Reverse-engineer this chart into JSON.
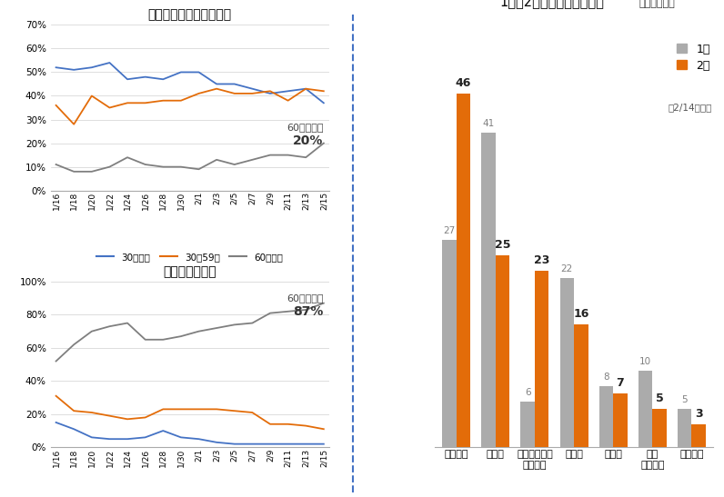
{
  "dates": [
    "1/16",
    "1/18",
    "1/20",
    "1/22",
    "1/24",
    "1/26",
    "1/28",
    "1/30",
    "2/1",
    "2/3",
    "2/5",
    "2/7",
    "2/9",
    "2/11",
    "2/13",
    "2/15"
  ],
  "positive_under30": [
    52,
    51,
    52,
    54,
    47,
    48,
    47,
    50,
    50,
    45,
    45,
    43,
    41,
    42,
    43,
    37
  ],
  "positive_30to59": [
    36,
    28,
    40,
    35,
    37,
    37,
    38,
    38,
    41,
    43,
    41,
    41,
    42,
    38,
    43,
    42
  ],
  "positive_60plus": [
    11,
    8,
    8,
    10,
    14,
    11,
    10,
    10,
    9,
    13,
    11,
    13,
    15,
    15,
    14,
    20
  ],
  "hospital_under30": [
    15,
    11,
    6,
    5,
    5,
    6,
    10,
    6,
    5,
    3,
    2,
    2,
    2,
    2,
    2,
    2
  ],
  "hospital_30to59": [
    31,
    22,
    21,
    19,
    17,
    18,
    23,
    23,
    23,
    23,
    22,
    21,
    14,
    14,
    13,
    11
  ],
  "hospital_60plus": [
    52,
    62,
    70,
    73,
    75,
    65,
    65,
    67,
    70,
    72,
    74,
    75,
    81,
    82,
    83,
    87
  ],
  "bar_categories": [
    "幼保施設",
    "小学校",
    "障害者施設・\n高齢者・",
    "事業所",
    "中学校",
    "高校\n（寡含む",
    "医療機関"
  ],
  "jan_values": [
    27,
    41,
    6,
    22,
    8,
    10,
    5
  ],
  "feb_values": [
    46,
    25,
    23,
    16,
    7,
    5,
    3
  ],
  "color_blue": "#4472c4",
  "color_orange": "#e36c09",
  "color_gray": "#7f7f7f",
  "color_bar_gray": "#ababab",
  "color_bar_orange": "#e36c09",
  "title_positive": "年代別の陽性者数の割合",
  "title_hospital": "入院患者の割合",
  "title_bar": "1月～2月の集団感染の件数",
  "subtitle_bar": "（主なもの）",
  "legend_under30": "30歳未満",
  "legend_30to59": "30～59歳",
  "legend_60plus": "60歳以上",
  "legend_jan": "1月",
  "legend_feb": "2月",
  "legend_feb_sub": "（2/14まで）",
  "annot_pos_label": "60歳以上：",
  "annot_pos_val": "20%",
  "annot_hosp_label": "60歳以上：",
  "annot_hosp_val": "87%"
}
